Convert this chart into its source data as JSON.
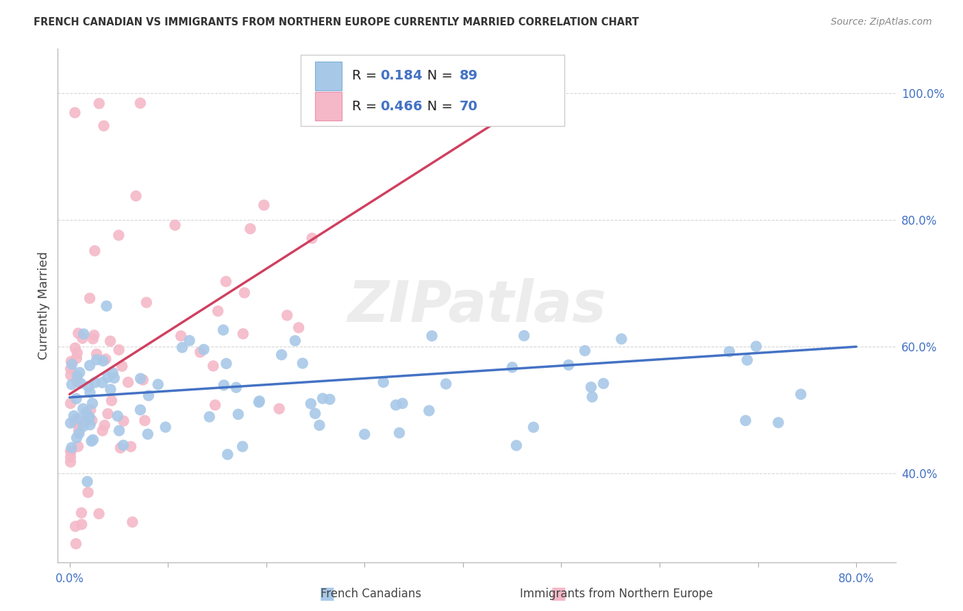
{
  "title": "FRENCH CANADIAN VS IMMIGRANTS FROM NORTHERN EUROPE CURRENTLY MARRIED CORRELATION CHART",
  "source": "Source: ZipAtlas.com",
  "ylabel": "Currently Married",
  "blue_color": "#a8c8e8",
  "blue_edge": "#7aafd4",
  "pink_color": "#f4b8c8",
  "pink_edge": "#e890a8",
  "line_blue": "#4472c4",
  "line_pink": "#d04060",
  "label_blue_color": "#4472c4",
  "R_blue": 0.184,
  "N_blue": 89,
  "R_pink": 0.466,
  "N_pink": 70,
  "legend_label_blue": "French Canadians",
  "legend_label_pink": "Immigrants from Northern Europe",
  "watermark": "ZIPatlas",
  "grid_color": "#cccccc",
  "ytick_color": "#4472c4",
  "xtick_color": "#4472c4",
  "title_color": "#333333",
  "source_color": "#888888"
}
